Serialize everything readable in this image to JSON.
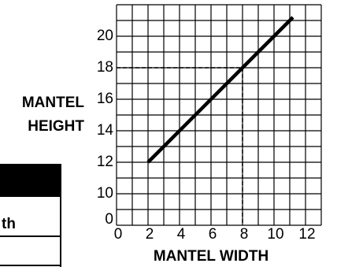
{
  "chart_data": {
    "type": "line",
    "x_label": "MANTEL WIDTH",
    "y_label_lines": [
      "MANTEL",
      "HEIGHT"
    ],
    "y_axis_bottom_label": "0",
    "x": [
      2,
      11.2
    ],
    "series": [
      {
        "color": "#000000",
        "values": [
          12,
          21.2
        ]
      }
    ],
    "guide": {
      "x": 8,
      "y": 18
    },
    "xlim": [
      0,
      13
    ],
    "ylim": [
      8,
      22
    ],
    "xticks": [
      0,
      2,
      4,
      6,
      8,
      10,
      12
    ],
    "yticks": [
      10,
      12,
      14,
      16,
      18,
      20
    ],
    "grid": true
  },
  "table_fragment": {
    "cell": "th"
  }
}
